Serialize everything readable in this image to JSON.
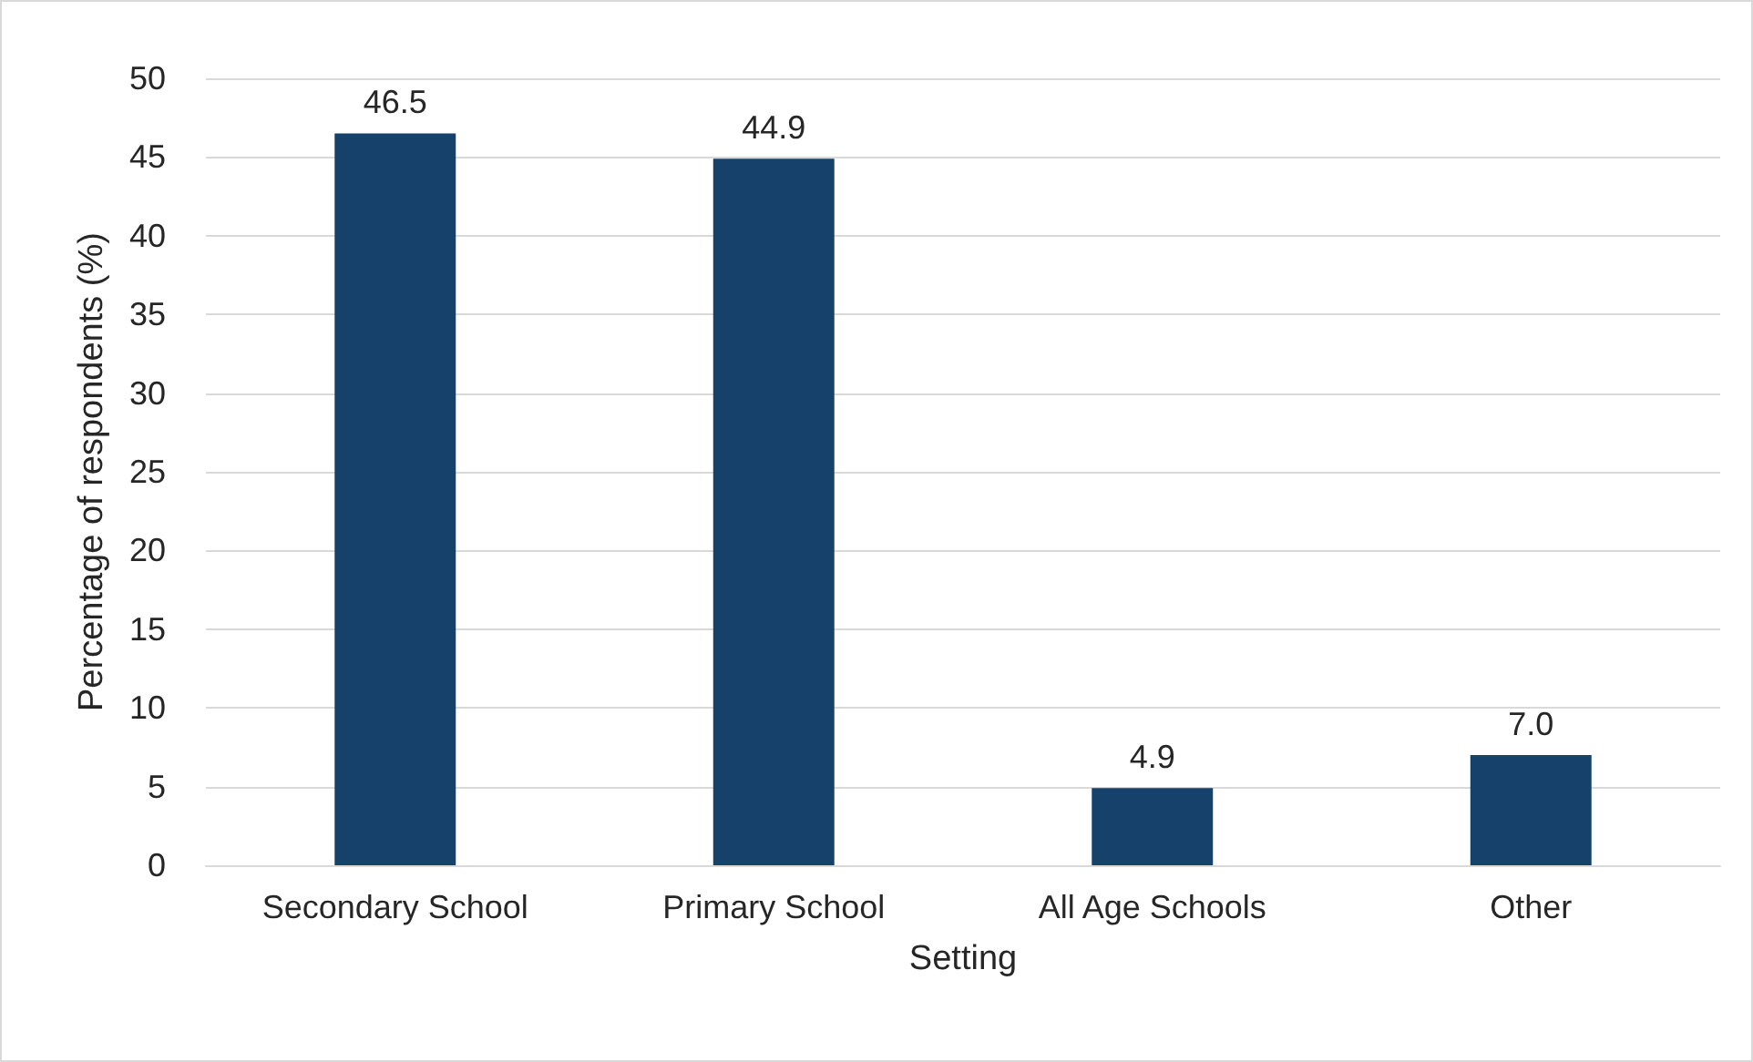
{
  "chart_data": {
    "type": "bar",
    "xlabel": "Setting",
    "ylabel": "Percentage of respondents (%)",
    "categories": [
      "Secondary School",
      "Primary School",
      "All Age Schools",
      "Other"
    ],
    "values": [
      46.5,
      44.9,
      4.9,
      7.0
    ],
    "value_labels": [
      "46.5",
      "44.9",
      "4.9",
      "7.0"
    ],
    "color": "#15416b",
    "ylim": [
      0,
      50
    ],
    "yticks": [
      0,
      5,
      10,
      15,
      20,
      25,
      30,
      35,
      40,
      45,
      50
    ],
    "grid": "y"
  }
}
